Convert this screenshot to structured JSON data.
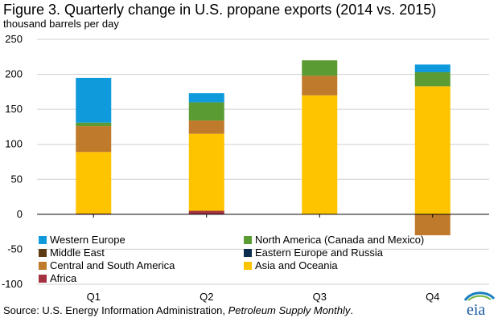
{
  "title": "Figure 3. Quarterly change in U.S. propane exports (2014 vs. 2015)",
  "subtitle": "thousand barrels per day",
  "source": {
    "prefix": "Source: U.S. Energy Information Administration, ",
    "publication": "Petroleum Supply Monthly",
    "suffix": "."
  },
  "logo_text": "eia",
  "chart_data": {
    "type": "bar",
    "stacked": true,
    "categories": [
      "Q1",
      "Q2",
      "Q3",
      "Q4"
    ],
    "ylim": [
      -100,
      250
    ],
    "yticks": [
      -100,
      -50,
      0,
      50,
      100,
      150,
      200,
      250
    ],
    "ylabel": "thousand barrels per day",
    "legend_position": "bottom, two columns",
    "series": [
      {
        "name": "Africa",
        "color": "#A33340",
        "values": [
          1,
          5,
          0,
          0
        ]
      },
      {
        "name": "Asia and Oceania",
        "color": "#FFC400",
        "values": [
          88,
          110,
          170,
          183
        ]
      },
      {
        "name": "Central and South America",
        "color": "#C07A2C",
        "values": [
          37,
          19,
          28,
          -30
        ]
      },
      {
        "name": "Eastern Europe and Russia",
        "color": "#0B2D4D",
        "values": [
          0,
          0,
          0,
          0
        ]
      },
      {
        "name": "Middle East",
        "color": "#5C3A12",
        "values": [
          0,
          0,
          0,
          0
        ]
      },
      {
        "name": "North America (Canada and Mexico)",
        "color": "#5A9B34",
        "values": [
          5,
          26,
          22,
          20
        ]
      },
      {
        "name": "Western Europe",
        "color": "#0E9ADB",
        "values": [
          64,
          13,
          0,
          11
        ]
      }
    ],
    "legend_order": [
      "Western Europe",
      "North America (Canada and Mexico)",
      "Middle East",
      "Eastern Europe and Russia",
      "Central and South America",
      "Asia and Oceania",
      "Africa"
    ]
  }
}
